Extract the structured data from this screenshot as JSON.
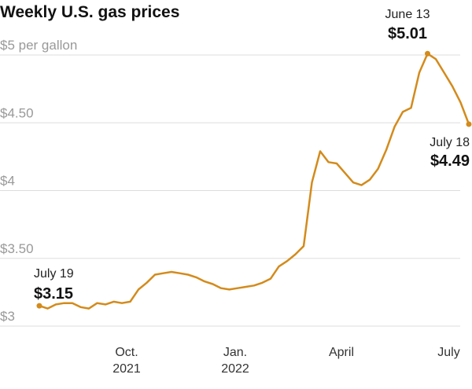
{
  "chart_data": {
    "type": "line",
    "title": "Weekly U.S. gas prices",
    "x": [
      "2021-07-19",
      "2021-07-26",
      "2021-08-02",
      "2021-08-09",
      "2021-08-16",
      "2021-08-23",
      "2021-08-30",
      "2021-09-06",
      "2021-09-13",
      "2021-09-20",
      "2021-09-27",
      "2021-10-04",
      "2021-10-11",
      "2021-10-18",
      "2021-10-25",
      "2021-11-01",
      "2021-11-08",
      "2021-11-15",
      "2021-11-22",
      "2021-11-29",
      "2021-12-06",
      "2021-12-13",
      "2021-12-20",
      "2021-12-27",
      "2022-01-03",
      "2022-01-10",
      "2022-01-17",
      "2022-01-24",
      "2022-01-31",
      "2022-02-07",
      "2022-02-14",
      "2022-02-21",
      "2022-02-28",
      "2022-03-07",
      "2022-03-14",
      "2022-03-21",
      "2022-03-28",
      "2022-04-04",
      "2022-04-11",
      "2022-04-18",
      "2022-04-25",
      "2022-05-02",
      "2022-05-09",
      "2022-05-16",
      "2022-05-23",
      "2022-05-30",
      "2022-06-06",
      "2022-06-13",
      "2022-06-20",
      "2022-06-27",
      "2022-07-04",
      "2022-07-11",
      "2022-07-18"
    ],
    "series": [
      {
        "color": "#d38b1c",
        "values": [
          3.15,
          3.13,
          3.16,
          3.17,
          3.17,
          3.14,
          3.13,
          3.17,
          3.16,
          3.18,
          3.17,
          3.18,
          3.27,
          3.32,
          3.38,
          3.39,
          3.4,
          3.39,
          3.38,
          3.36,
          3.33,
          3.31,
          3.28,
          3.27,
          3.28,
          3.29,
          3.3,
          3.32,
          3.35,
          3.44,
          3.48,
          3.53,
          3.59,
          4.06,
          4.29,
          4.21,
          4.2,
          4.13,
          4.06,
          4.04,
          4.08,
          4.16,
          4.3,
          4.47,
          4.58,
          4.61,
          4.87,
          5.01,
          4.97,
          4.87,
          4.77,
          4.65,
          4.49
        ]
      }
    ],
    "xlim": [
      "2021-07-19",
      "2022-07-18"
    ],
    "xticks": [
      {
        "value": "2021-10-01",
        "label": "Oct.\n2021"
      },
      {
        "value": "2022-01-01",
        "label": "Jan.\n2022"
      },
      {
        "value": "2022-04-01",
        "label": "April"
      },
      {
        "value": "2022-07-01",
        "label": "July"
      }
    ],
    "ylim": [
      3,
      5
    ],
    "yticks": [
      {
        "value": 5,
        "label": "$5 per gallon"
      },
      {
        "value": 4.5,
        "label": "$4.50"
      },
      {
        "value": 4,
        "label": "$4"
      },
      {
        "value": 3.5,
        "label": "$3.50"
      },
      {
        "value": 3,
        "label": "$3"
      }
    ],
    "grid": true,
    "annotations": [
      {
        "x": "2021-07-19",
        "text": "July 19",
        "value": 3.15,
        "value_label": "$3.15"
      },
      {
        "x": "2022-06-13",
        "text": "June 13",
        "value": 5.01,
        "value_label": "$5.01"
      },
      {
        "x": "2022-07-18",
        "text": "July 18",
        "value": 4.49,
        "value_label": "$4.49"
      }
    ]
  }
}
